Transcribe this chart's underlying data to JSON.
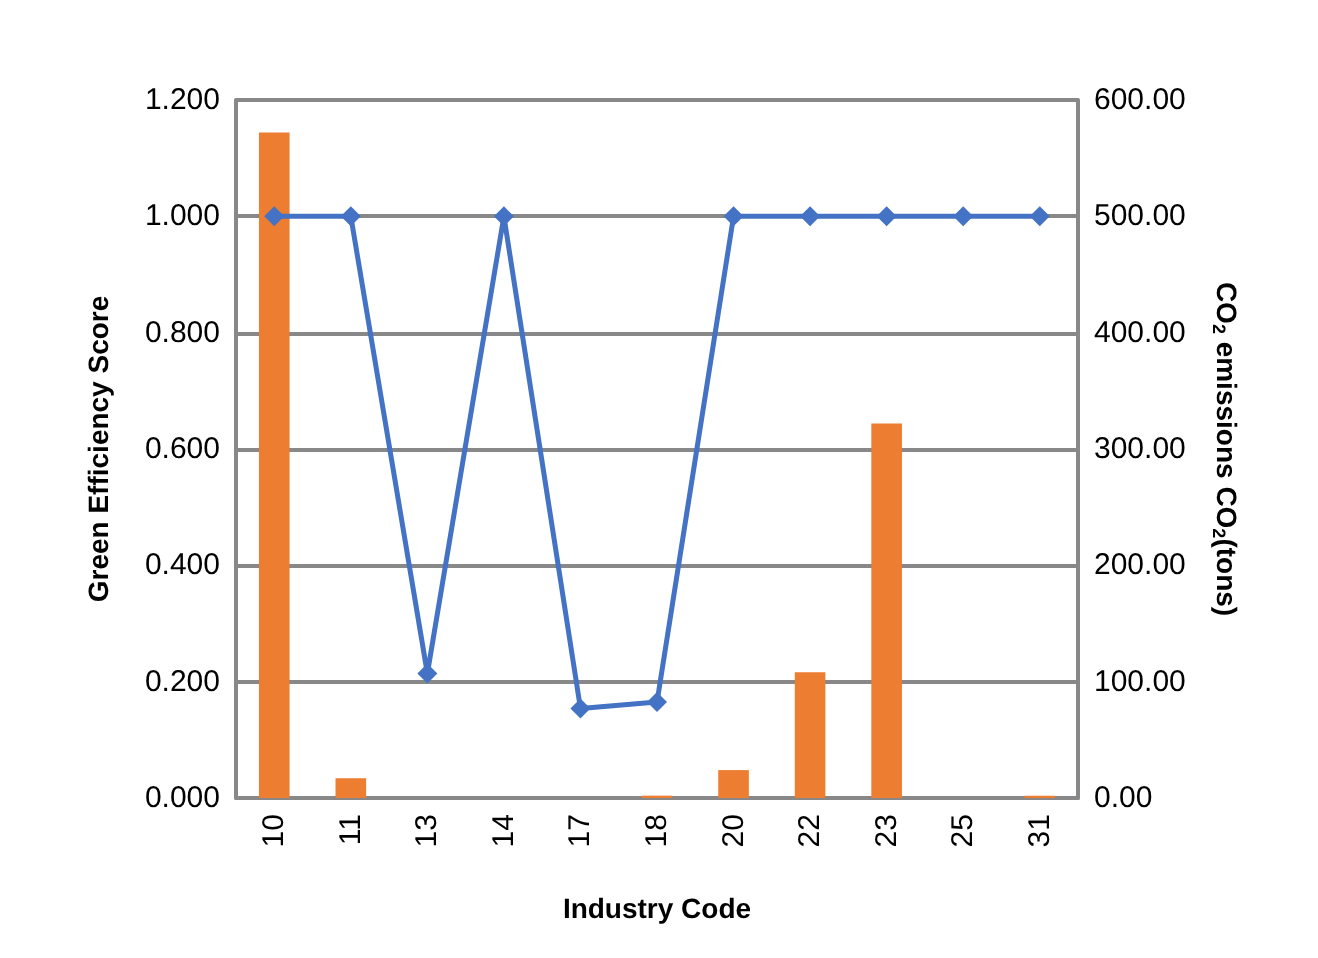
{
  "chart_data": {
    "type": "bar",
    "xlabel": "Industry Code",
    "ylabel": "Green Efficiency Score",
    "y2label": "CO$_{2}$ emissions CO$_{2}$(tons)",
    "categories": [
      "10",
      "11",
      "13",
      "14",
      "17",
      "18",
      "20",
      "22",
      "23",
      "25",
      "31"
    ],
    "series": [
      {
        "axis": "y2",
        "color": "#ed7d31",
        "values": [
          572,
          17,
          0,
          0,
          0,
          2,
          24,
          108,
          322,
          0,
          2
        ]
      },
      {
        "type": "line",
        "color": "#4472c4",
        "marker": "diamond",
        "values": [
          1,
          1,
          0.214,
          1,
          0.154,
          0.165,
          1,
          1,
          1,
          1,
          1
        ]
      }
    ],
    "ylim": [
      0,
      1.2
    ],
    "yticks": [
      {
        "value": 0,
        "label": "0.000"
      },
      {
        "value": 0.2,
        "label": "0.200"
      },
      {
        "value": 0.4,
        "label": "0.400"
      },
      {
        "value": 0.6,
        "label": "0.600"
      },
      {
        "value": 0.8,
        "label": "0.800"
      },
      {
        "value": 1,
        "label": "1.000"
      },
      {
        "value": 1.2,
        "label": "1.200"
      }
    ],
    "y2lim": [
      0,
      600
    ],
    "y2ticks": [
      {
        "value": 0,
        "label": "0.00"
      },
      {
        "value": 100,
        "label": "100.00"
      },
      {
        "value": 200,
        "label": "200.00"
      },
      {
        "value": 300,
        "label": "300.00"
      },
      {
        "value": 400,
        "label": "400.00"
      },
      {
        "value": 500,
        "label": "500.00"
      },
      {
        "value": 600,
        "label": "600.00"
      }
    ],
    "grid": "y"
  }
}
